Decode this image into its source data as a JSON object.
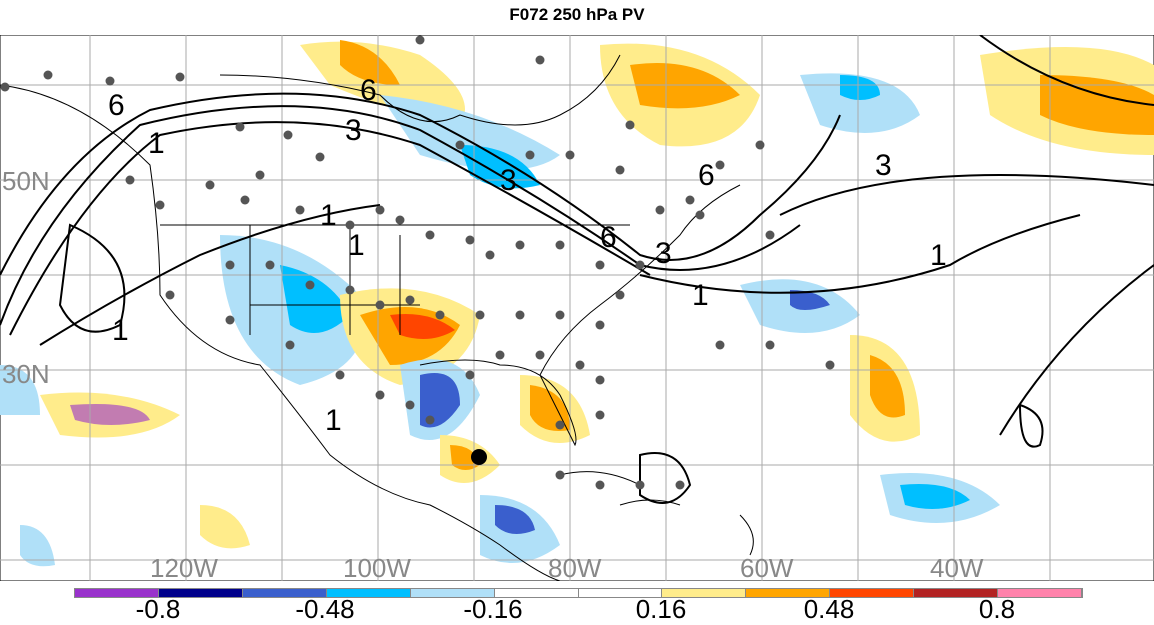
{
  "title": "F072 250 hPa PV",
  "lat_labels": [
    "50N",
    "30N"
  ],
  "lon_labels": [
    "120W",
    "100W",
    "80W",
    "60W",
    "40W"
  ],
  "contour_labels": [
    "6",
    "3",
    "1",
    "6",
    "3",
    "1",
    "1",
    "6",
    "6",
    "3",
    "3",
    "1",
    "1",
    "1",
    "1"
  ],
  "colorbar": {
    "colors": [
      "#9932cc",
      "#00008b",
      "#3a5fcd",
      "#00bfff",
      "#b0e0f8",
      "#ffffff",
      "#ffffff",
      "#ffec8b",
      "#ffa500",
      "#ff4500",
      "#b22222",
      "#ff82ab"
    ],
    "labels": [
      "-0.8",
      "-0.48",
      "-0.16",
      "0.16",
      "0.48",
      "0.8"
    ]
  },
  "markers": {
    "storm_center_color": "#000000",
    "station_color": "#555555"
  }
}
